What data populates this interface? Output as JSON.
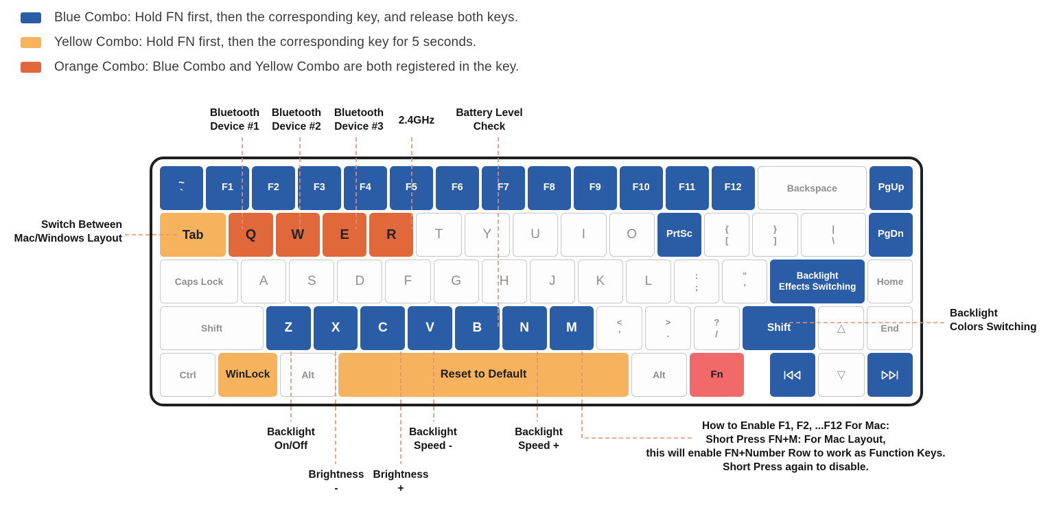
{
  "colors": {
    "blue": "#2B5DA7",
    "yellow": "#F6B25C",
    "orange": "#E0683B",
    "red": "#F16969",
    "dash": "#E29173"
  },
  "legend": [
    {
      "name": "blue-combo",
      "color": "#2B5DA7",
      "label": "Blue Combo: Hold FN first, then the corresponding key, and release both keys."
    },
    {
      "name": "yellow-combo",
      "color": "#F6B25C",
      "label": "Yellow Combo: Hold FN first, then the corresponding key for 5 seconds."
    },
    {
      "name": "orange-combo",
      "color": "#E0683B",
      "label": "Orange Combo: Blue Combo and Yellow Combo are both registered in the key."
    }
  ],
  "callouts": {
    "top": [
      {
        "line1": "Bluetooth",
        "line2": "Device #1"
      },
      {
        "line1": "Bluetooth",
        "line2": "Device #2"
      },
      {
        "line1": "Bluetooth",
        "line2": "Device #3"
      },
      {
        "line1": "2.4GHz",
        "line2": ""
      },
      {
        "line1": "Battery Level",
        "line2": "Check"
      }
    ],
    "left": {
      "line1": "Switch Between",
      "line2": "Mac/Windows Layout"
    },
    "right": {
      "line1": "Backlight",
      "line2": "Colors Switching"
    },
    "bottom": [
      {
        "line1": "Backlight",
        "line2": "On/Off"
      },
      {
        "line1": "Brightness",
        "line2": "-"
      },
      {
        "line1": "Brightness",
        "line2": "+"
      },
      {
        "line1": "Backlight",
        "line2": "Speed -"
      },
      {
        "line1": "Backlight",
        "line2": "Speed +"
      }
    ],
    "mac_note": {
      "line1": "How to Enable F1, F2, ...F12 For Mac:",
      "line2": "Short Press FN+M: For Mac Layout,",
      "line3": "this will enable FN+Number Row to work as Function Keys.",
      "line4": "Short Press again to disable."
    }
  },
  "keyboard": {
    "rows": [
      [
        {
          "name": "backtick",
          "type": "blue",
          "lines": [
            "~",
            "`"
          ],
          "cls": "stack-w"
        },
        {
          "name": "f1",
          "type": "blue",
          "label": "F1",
          "cls": "fn"
        },
        {
          "name": "f2",
          "type": "blue",
          "label": "F2",
          "cls": "fn"
        },
        {
          "name": "f3",
          "type": "blue",
          "label": "F3",
          "cls": "fn"
        },
        {
          "name": "f4",
          "type": "blue",
          "label": "F4",
          "cls": "fn"
        },
        {
          "name": "f5",
          "type": "blue",
          "label": "F5",
          "cls": "fn"
        },
        {
          "name": "f6",
          "type": "blue",
          "label": "F6",
          "cls": "fn"
        },
        {
          "name": "f7",
          "type": "blue",
          "label": "F7",
          "cls": "fn"
        },
        {
          "name": "f8",
          "type": "blue",
          "label": "F8",
          "cls": "fn"
        },
        {
          "name": "f9",
          "type": "blue",
          "label": "F9",
          "cls": "fn"
        },
        {
          "name": "f10",
          "type": "blue",
          "label": "F10",
          "cls": "fn"
        },
        {
          "name": "f11",
          "type": "blue",
          "label": "F11",
          "cls": "fn"
        },
        {
          "name": "f12",
          "type": "blue",
          "label": "F12",
          "cls": "fn"
        },
        {
          "name": "backspace",
          "type": "white",
          "w": 2.5,
          "label": "Backspace",
          "cls": "text"
        },
        {
          "name": "pgup",
          "type": "blue",
          "label": "PgUp",
          "cls": "fn"
        }
      ],
      [
        {
          "name": "tab",
          "type": "yellow",
          "w": 1.5,
          "label": "Tab",
          "cls": "dark-b"
        },
        {
          "name": "q",
          "type": "orange",
          "label": "Q",
          "cls": "char-d"
        },
        {
          "name": "w",
          "type": "orange",
          "label": "W",
          "cls": "char-d"
        },
        {
          "name": "e",
          "type": "orange",
          "label": "E",
          "cls": "char-d"
        },
        {
          "name": "r",
          "type": "orange",
          "label": "R",
          "cls": "char-d"
        },
        {
          "name": "t",
          "type": "white",
          "label": "T",
          "cls": "char"
        },
        {
          "name": "y",
          "type": "white",
          "label": "Y",
          "cls": "char"
        },
        {
          "name": "u",
          "type": "white",
          "label": "U",
          "cls": "char"
        },
        {
          "name": "i",
          "type": "white",
          "label": "I",
          "cls": "char"
        },
        {
          "name": "o",
          "type": "white",
          "label": "O",
          "cls": "char"
        },
        {
          "name": "prtsc",
          "type": "blue",
          "label": "PrtSc",
          "cls": "fn"
        },
        {
          "name": "bracket-open",
          "type": "white",
          "lines": [
            "{",
            "["
          ]
        },
        {
          "name": "bracket-close",
          "type": "white",
          "lines": [
            "}",
            "]"
          ]
        },
        {
          "name": "backslash",
          "type": "white",
          "w": 1.45,
          "lines": [
            "|",
            "\\"
          ]
        },
        {
          "name": "pgdn",
          "type": "blue",
          "label": "PgDn",
          "cls": "fn"
        }
      ],
      [
        {
          "name": "caps-lock",
          "type": "white",
          "w": 1.75,
          "label": "Caps Lock",
          "cls": "text"
        },
        {
          "name": "a",
          "type": "white",
          "label": "A",
          "cls": "char"
        },
        {
          "name": "s",
          "type": "white",
          "label": "S",
          "cls": "char"
        },
        {
          "name": "d",
          "type": "white",
          "label": "D",
          "cls": "char"
        },
        {
          "name": "f",
          "type": "white",
          "label": "F",
          "cls": "char"
        },
        {
          "name": "g",
          "type": "white",
          "label": "G",
          "cls": "char"
        },
        {
          "name": "h",
          "type": "white",
          "label": "H",
          "cls": "char"
        },
        {
          "name": "j",
          "type": "white",
          "label": "J",
          "cls": "char"
        },
        {
          "name": "k",
          "type": "white",
          "label": "K",
          "cls": "char"
        },
        {
          "name": "l",
          "type": "white",
          "label": "L",
          "cls": "char"
        },
        {
          "name": "semicolon",
          "type": "white",
          "lines": [
            ":",
            ";"
          ]
        },
        {
          "name": "quote",
          "type": "white",
          "lines": [
            "”",
            "’"
          ]
        },
        {
          "name": "backlight-effects-switching",
          "type": "blue",
          "w": 2.15,
          "lines": [
            "Backlight",
            "Effects Switching"
          ],
          "cls": "multi"
        },
        {
          "name": "home",
          "type": "white",
          "label": "Home",
          "cls": "text"
        }
      ],
      [
        {
          "name": "shift-left",
          "type": "white",
          "w": 2.3,
          "label": "Shift",
          "cls": "text"
        },
        {
          "name": "z",
          "type": "blue",
          "label": "Z",
          "cls": "char-b"
        },
        {
          "name": "x",
          "type": "blue",
          "label": "X",
          "cls": "char-b"
        },
        {
          "name": "c",
          "type": "blue",
          "label": "C",
          "cls": "char-b"
        },
        {
          "name": "v",
          "type": "blue",
          "label": "V",
          "cls": "char-b"
        },
        {
          "name": "b",
          "type": "blue",
          "label": "B",
          "cls": "char-b"
        },
        {
          "name": "n",
          "type": "blue",
          "label": "N",
          "cls": "char-b"
        },
        {
          "name": "m",
          "type": "blue",
          "label": "M",
          "cls": "char-b"
        },
        {
          "name": "comma",
          "type": "white",
          "lines": [
            "<",
            "’"
          ]
        },
        {
          "name": "period",
          "type": "white",
          "lines": [
            ">",
            "."
          ]
        },
        {
          "name": "slash",
          "type": "white",
          "lines": [
            "?",
            "/"
          ]
        },
        {
          "name": "shift-right",
          "type": "blue",
          "w": 1.65,
          "label": "Shift",
          "cls": "fn15"
        },
        {
          "name": "arrow-up",
          "type": "white",
          "label": "△",
          "cls": "tri"
        },
        {
          "name": "end",
          "type": "white",
          "label": "End",
          "cls": "text"
        }
      ],
      [
        {
          "name": "ctrl",
          "type": "white",
          "w": 1.2,
          "label": "Ctrl",
          "cls": "text"
        },
        {
          "name": "winlock",
          "type": "yellow",
          "w": 1.3,
          "label": "WinLock",
          "cls": "dark-b2"
        },
        {
          "name": "alt-left",
          "type": "white",
          "w": 1.2,
          "label": "Alt",
          "cls": "text"
        },
        {
          "name": "space-reset-to-default",
          "type": "yellow",
          "w": 6.4,
          "label": "Reset to Default",
          "cls": "big"
        },
        {
          "name": "alt-right",
          "type": "white",
          "w": 1.2,
          "label": "Alt",
          "cls": "text"
        },
        {
          "name": "fn",
          "type": "red",
          "w": 1.2,
          "label": "Fn",
          "cls": "dark-b3"
        },
        {
          "gap": true,
          "w": 0.45
        },
        {
          "name": "arrow-left-prev-track",
          "type": "blue",
          "icon": "prev-track"
        },
        {
          "name": "arrow-down",
          "type": "white",
          "label": "▽",
          "cls": "tri"
        },
        {
          "name": "arrow-right-next-track",
          "type": "blue",
          "icon": "next-track"
        }
      ]
    ]
  }
}
